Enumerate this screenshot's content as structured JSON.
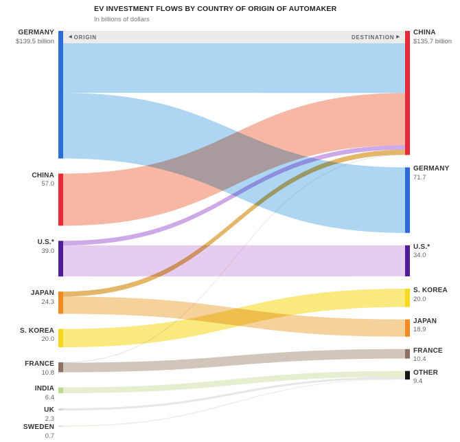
{
  "header": {
    "title": "EV INVESTMENT FLOWS BY COUNTRY OF ORIGIN OF AUTOMAKER",
    "subtitle": "In billions of dollars",
    "origin_label": "ORIGIN",
    "destination_label": "DESTINATION",
    "origin_arrow": "◀",
    "destination_arrow": "▶"
  },
  "chart_data": {
    "type": "sankey",
    "title": "EV INVESTMENT FLOWS BY COUNTRY OF ORIGIN OF AUTOMAKER",
    "subtitle": "In billions of dollars",
    "units": "billions of dollars",
    "origin_nodes": [
      {
        "id": "germany",
        "label": "GERMANY",
        "value": 139.5,
        "value_label": "$139.5 billion",
        "color": "#2e6bd8"
      },
      {
        "id": "china",
        "label": "CHINA",
        "value": 57.0,
        "value_label": "57.0",
        "color": "#e62a39"
      },
      {
        "id": "us",
        "label": "U.S.*",
        "value": 39.0,
        "value_label": "39.0",
        "color": "#4f1d96"
      },
      {
        "id": "japan",
        "label": "JAPAN",
        "value": 24.3,
        "value_label": "24.3",
        "color": "#f28a21"
      },
      {
        "id": "skorea",
        "label": "S. KOREA",
        "value": 20.0,
        "value_label": "20.0",
        "color": "#f8d71f"
      },
      {
        "id": "france",
        "label": "FRANCE",
        "value": 10.8,
        "value_label": "10.8",
        "color": "#8b7164"
      },
      {
        "id": "india",
        "label": "INDIA",
        "value": 6.4,
        "value_label": "6.4",
        "color": "#badb90"
      },
      {
        "id": "uk",
        "label": "UK",
        "value": 2.3,
        "value_label": "2.3",
        "color": "#d8d8d8"
      },
      {
        "id": "sweden",
        "label": "SWEDEN",
        "value": 0.7,
        "value_label": "0.7",
        "color": "#e0dcba"
      }
    ],
    "destination_nodes": [
      {
        "id": "china",
        "label": "CHINA",
        "value": 135.7,
        "value_label": "$135.7 billion",
        "color": "#e62a39"
      },
      {
        "id": "germany",
        "label": "GERMANY",
        "value": 71.7,
        "value_label": "71.7",
        "color": "#2e6bd8"
      },
      {
        "id": "us",
        "label": "U.S.*",
        "value": 34.0,
        "value_label": "34.0",
        "color": "#4f1d96"
      },
      {
        "id": "skorea",
        "label": "S. KOREA",
        "value": 20.0,
        "value_label": "20.0",
        "color": "#f8d71f"
      },
      {
        "id": "japan",
        "label": "JAPAN",
        "value": 18.9,
        "value_label": "18.9",
        "color": "#f28a21"
      },
      {
        "id": "france",
        "label": "FRANCE",
        "value": 10.4,
        "value_label": "10.4",
        "color": "#8b7164"
      },
      {
        "id": "other",
        "label": "OTHER",
        "value": 9.4,
        "value_label": "9.4",
        "color": "#141414"
      }
    ],
    "flows": [
      {
        "from": "germany",
        "to": "china",
        "value": 67.8,
        "color": "#aad4f2"
      },
      {
        "from": "germany",
        "to": "germany",
        "value": 71.7,
        "color": "#aad4f2"
      },
      {
        "from": "china",
        "to": "china",
        "value": 57.0,
        "color": "#f7b3a0"
      },
      {
        "from": "us",
        "to": "china",
        "value": 5.0,
        "color": "#cba4e6"
      },
      {
        "from": "us",
        "to": "us",
        "value": 34.0,
        "color": "#e5c9ee"
      },
      {
        "from": "japan",
        "to": "china",
        "value": 5.4,
        "color": "#e2b261"
      },
      {
        "from": "japan",
        "to": "japan",
        "value": 18.9,
        "color": "#f4cf96"
      },
      {
        "from": "skorea",
        "to": "skorea",
        "value": 20.0,
        "color": "#f9e878"
      },
      {
        "from": "france",
        "to": "china",
        "value": 0.4,
        "color": "#cdc3b8"
      },
      {
        "from": "france",
        "to": "france",
        "value": 10.4,
        "color": "#cdc3b8"
      },
      {
        "from": "india",
        "to": "other",
        "value": 6.4,
        "color": "#e5edcd"
      },
      {
        "from": "uk",
        "to": "other",
        "value": 2.3,
        "color": "#e6e6e6"
      },
      {
        "from": "sweden",
        "to": "other",
        "value": 0.7,
        "color": "#eceadf"
      }
    ]
  }
}
